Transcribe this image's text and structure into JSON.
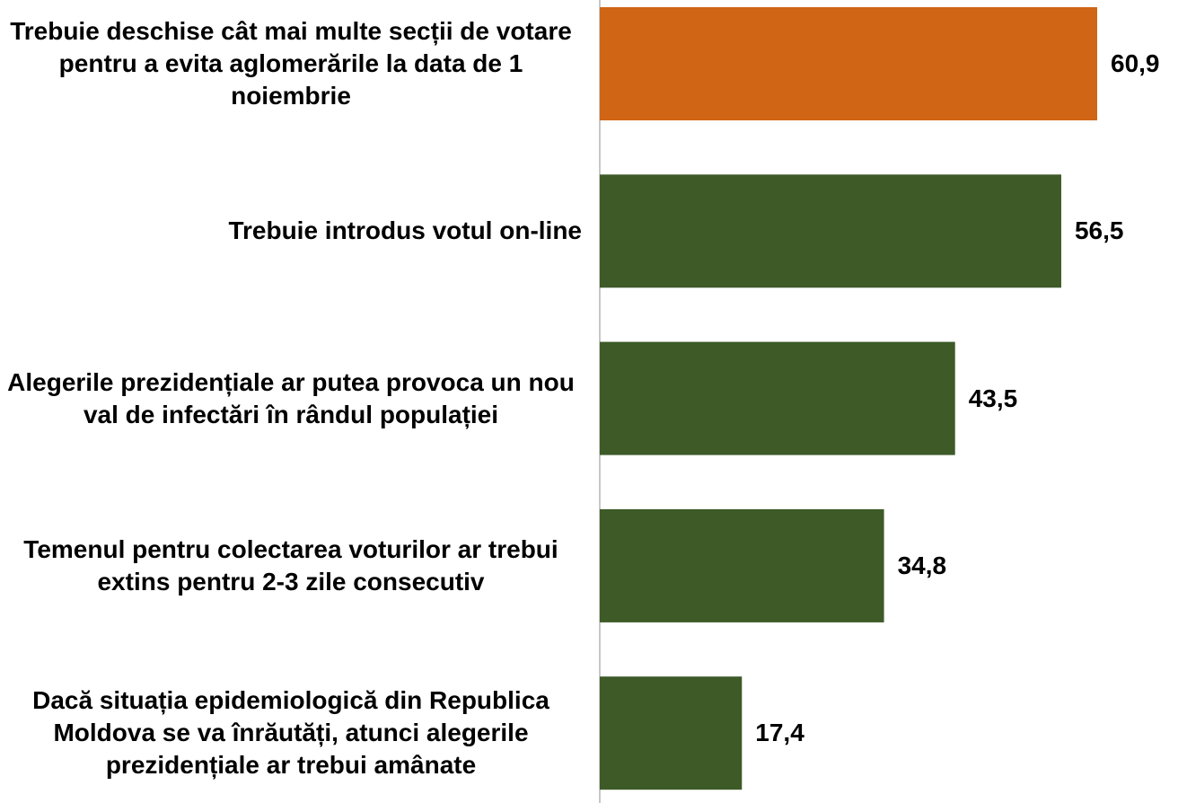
{
  "chart_data": {
    "type": "barh",
    "categories": [
      "Trebuie deschise cât mai multe secții de votare pentru a evita aglomerările la data de 1 noiembrie",
      "Trebuie introdus votul on-line",
      "Alegerile prezidențiale ar putea provoca un nou val de infectări în rândul populației",
      "Temenul pentru colectarea voturilor ar trebui extins pentru 2-3 zile consecutiv",
      "Dacă situația epidemiologică din Republica Moldova se va înrăutăți, atunci alegerile prezidențiale ar trebui amânate"
    ],
    "values": [
      60.9,
      56.5,
      43.5,
      34.8,
      17.4
    ],
    "value_labels": [
      "60,9",
      "56,5",
      "43,5",
      "34,8",
      "17,4"
    ],
    "colors": [
      "#d06515",
      "#3d5a27",
      "#3d5a27",
      "#3d5a27",
      "#3d5a27"
    ]
  }
}
